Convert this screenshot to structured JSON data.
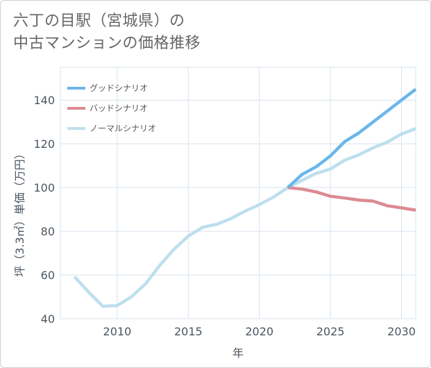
{
  "title_lines": [
    "六丁の目駅（宮城県）の",
    "中古マンションの価格推移"
  ],
  "chart_data": {
    "type": "line",
    "title": "六丁の目駅（宮城県）の中古マンションの価格推移",
    "xlabel": "年",
    "ylabel": "坪（3.3㎡）単価（万円）",
    "xlim": [
      2006,
      2031
    ],
    "ylim": [
      40,
      155
    ],
    "grid": true,
    "legend_position": "top-left",
    "x_ticks": [
      2010,
      2015,
      2020,
      2025,
      2030
    ],
    "y_ticks": [
      40,
      60,
      80,
      100,
      120,
      140
    ],
    "series": [
      {
        "name": "グッドシナリオ",
        "color": "#6bb6ea",
        "x": [
          2022,
          2023,
          2024,
          2025,
          2026,
          2027,
          2028,
          2029,
          2030,
          2031
        ],
        "values": [
          100,
          106,
          109.5,
          114.5,
          121,
          125,
          130,
          135,
          140,
          145
        ]
      },
      {
        "name": "バッドシナリオ",
        "color": "#dc8a93",
        "x": [
          2022,
          2023,
          2024,
          2025,
          2026,
          2027,
          2028,
          2029,
          2030,
          2031
        ],
        "values": [
          100,
          99.3,
          98,
          96,
          95.2,
          94.3,
          93.8,
          91.7,
          90.7,
          89.7
        ]
      },
      {
        "name": "ノーマルシナリオ",
        "color": "#bddfee",
        "x": [
          2007,
          2008,
          2009,
          2010,
          2011,
          2012,
          2013,
          2014,
          2015,
          2016,
          2017,
          2018,
          2019,
          2020,
          2021,
          2022,
          2023,
          2024,
          2025,
          2026,
          2027,
          2028,
          2029,
          2030,
          2031
        ],
        "values": [
          59.2,
          52,
          45.7,
          46,
          50,
          56,
          64.5,
          71.8,
          77.8,
          81.8,
          83.2,
          85.8,
          89.2,
          92.2,
          95.7,
          100,
          103.3,
          106.5,
          108.5,
          112.5,
          115,
          118.2,
          120.8,
          124.5,
          127
        ]
      }
    ]
  }
}
